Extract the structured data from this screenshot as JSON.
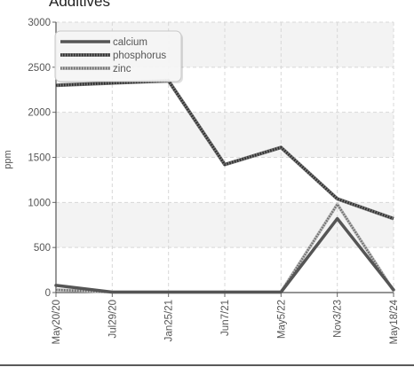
{
  "chart_data": {
    "type": "line",
    "title": "Additives",
    "ylabel": "ppm",
    "xlabel": "",
    "ylim": [
      0,
      3000
    ],
    "y_ticks": [
      0,
      500,
      1000,
      1500,
      2000,
      2500,
      3000
    ],
    "categories": [
      "May20/20",
      "Jul29/20",
      "Jan25/21",
      "Jun7/21",
      "May5/22",
      "Nov3/23",
      "May18/24"
    ],
    "grid": true,
    "legend_position": "top-left",
    "series": [
      {
        "name": "calcium",
        "values": [
          80,
          5,
          5,
          5,
          5,
          820,
          30
        ],
        "color": "#555555",
        "style": "solid"
      },
      {
        "name": "phosphorus",
        "values": [
          2300,
          null,
          2350,
          1420,
          1610,
          1040,
          820
        ],
        "color": "#4a4a4a",
        "style": "dotted"
      },
      {
        "name": "zinc",
        "values": [
          30,
          5,
          5,
          5,
          5,
          980,
          20
        ],
        "color": "#8a8a8a",
        "style": "dotted"
      }
    ]
  }
}
